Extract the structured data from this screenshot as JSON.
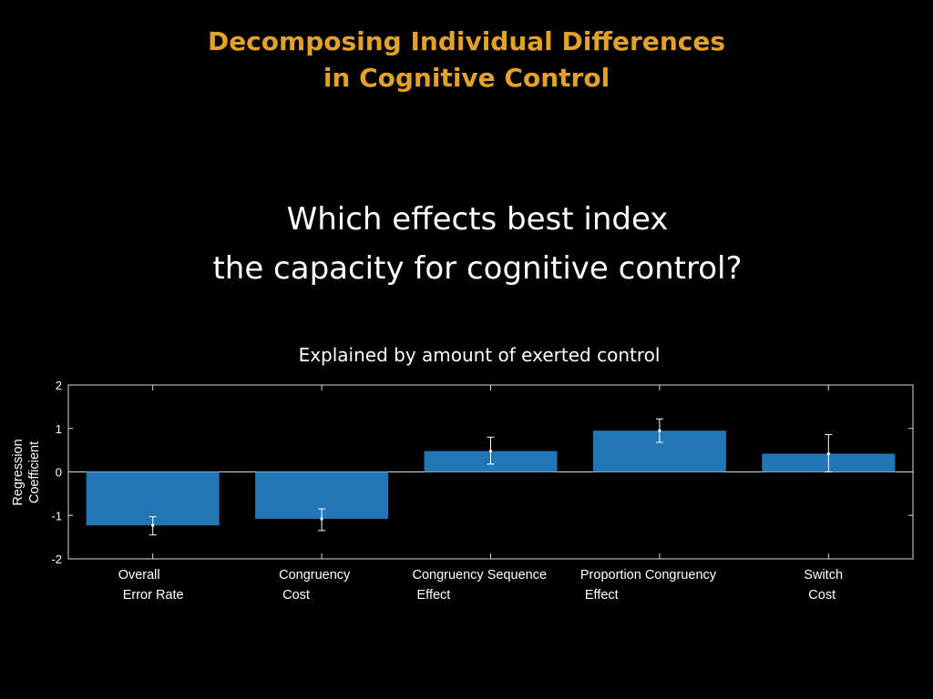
{
  "slide": {
    "title_line1": "Decomposing Individual Differences",
    "title_line2": "in Cognitive Control",
    "question_line1": "Which effects best index",
    "question_line2": "the capacity for cognitive control?"
  },
  "colors": {
    "background": "#000000",
    "title": "#e3a12a",
    "text": "#ffffff",
    "bar": "#2177b6",
    "axis": "#d9d9d9"
  },
  "chart_data": {
    "type": "bar",
    "title": "Explained by amount of exerted control",
    "ylabel_lines": [
      "Regression",
      "Coefficient"
    ],
    "xlabel": "",
    "ylim": [
      -2,
      2
    ],
    "yticks": [
      2,
      1,
      0,
      -1,
      -2
    ],
    "categories": [
      [
        "Overall",
        "Error Rate"
      ],
      [
        "Congruency",
        "Cost"
      ],
      [
        "Congruency Sequence",
        "Effect"
      ],
      [
        "Proportion Congruency",
        "Effect"
      ],
      [
        "Switch",
        "Cost"
      ]
    ],
    "values": [
      -1.23,
      -1.08,
      0.48,
      0.95,
      0.42
    ],
    "error_low": [
      -1.45,
      -1.35,
      0.18,
      0.68,
      0.0
    ],
    "error_high": [
      -1.03,
      -0.85,
      0.8,
      1.22,
      0.86
    ],
    "grid": false,
    "legend": "none"
  }
}
